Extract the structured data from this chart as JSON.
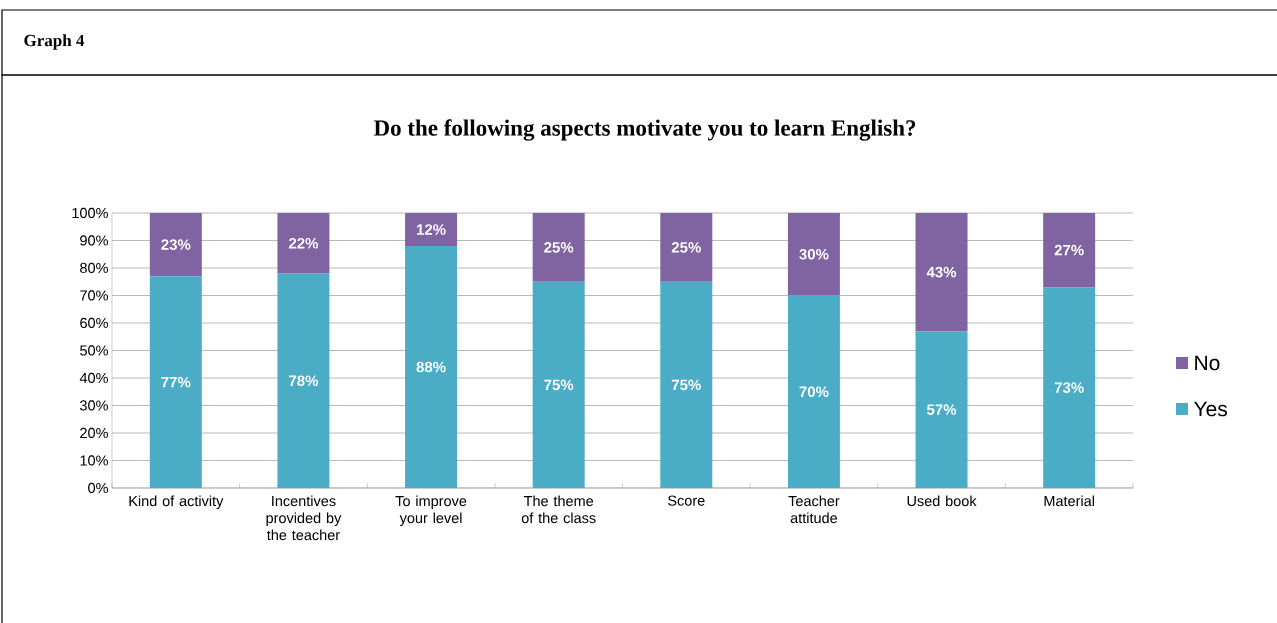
{
  "chart_data": {
    "type": "bar",
    "title": "Do the following aspects motivate you to learn English?",
    "annotations": [
      "Graph 4"
    ],
    "categories": [
      "Kind of activity",
      "Incentives provided by the teacher",
      "To improve your level",
      "The theme of the class",
      "Score",
      "Teacher attitude",
      "Used book",
      "Material"
    ],
    "series": [
      {
        "name": "Yes",
        "color": "#4bacc6",
        "values": [
          77,
          78,
          88,
          75,
          75,
          70,
          57,
          73
        ],
        "value_labels": [
          "77%",
          "78%",
          "88%",
          "75%",
          "75%",
          "70%",
          "57%",
          "73%"
        ]
      },
      {
        "name": "No",
        "color": "#8064a2",
        "values": [
          23,
          22,
          12,
          25,
          25,
          30,
          43,
          27
        ],
        "value_labels": [
          "23%",
          "22%",
          "12%",
          "25%",
          "25%",
          "30%",
          "43%",
          "27%"
        ]
      }
    ],
    "stacked": true,
    "ylim": [
      0,
      100
    ],
    "yticks": [
      {
        "value": 0,
        "label": "0%"
      },
      {
        "value": 10,
        "label": "10%"
      },
      {
        "value": 20,
        "label": "20%"
      },
      {
        "value": 30,
        "label": "30%"
      },
      {
        "value": 40,
        "label": "40%"
      },
      {
        "value": 50,
        "label": "50%"
      },
      {
        "value": 60,
        "label": "60%"
      },
      {
        "value": 70,
        "label": "70%"
      },
      {
        "value": 80,
        "label": "80%"
      },
      {
        "value": 90,
        "label": "90%"
      },
      {
        "value": 100,
        "label": "100%"
      }
    ],
    "grid": "y",
    "legend": "right"
  }
}
